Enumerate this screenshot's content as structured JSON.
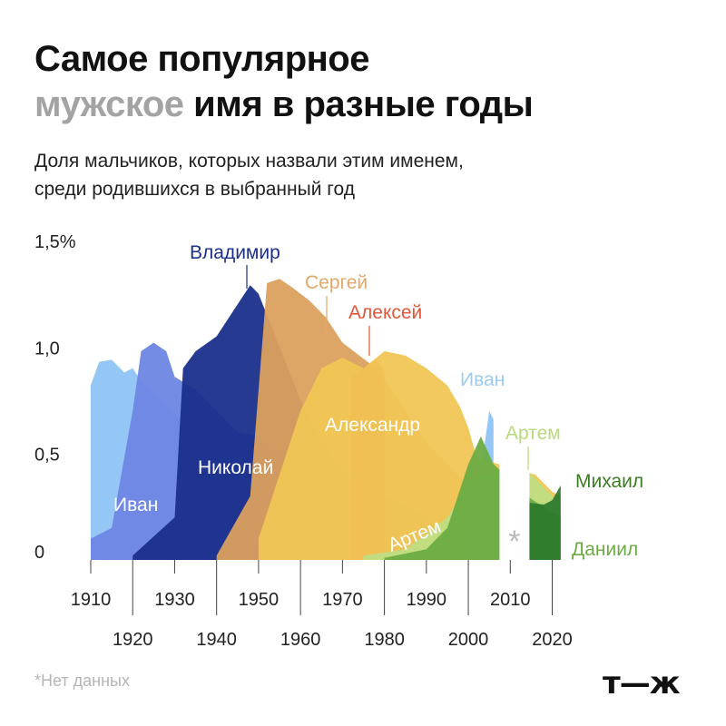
{
  "title": {
    "line1": "Самое популярное",
    "line2_muted": "мужское",
    "line2_rest": " имя в разные годы"
  },
  "subtitle": {
    "line1": "Доля мальчиков, которых назвали этим именем,",
    "line2": "среди родившихся в выбранный год"
  },
  "footnote": "*Нет данных",
  "logo": "т—ж",
  "gap_marker": "*",
  "chart_data": {
    "type": "area",
    "ylabel": "",
    "xlabel": "",
    "ylim": [
      0,
      1.5
    ],
    "xlim": [
      1910,
      2024
    ],
    "y_ticks": [
      {
        "v": 0,
        "label": "0"
      },
      {
        "v": 0.5,
        "label": "0,5"
      },
      {
        "v": 1.0,
        "label": "1,0"
      },
      {
        "v": 1.5,
        "label": "1,5%"
      }
    ],
    "x_ticks_top": [
      1910,
      1930,
      1950,
      1970,
      1990,
      2010
    ],
    "x_ticks_bottom": [
      1920,
      1940,
      1960,
      1980,
      2000,
      2020
    ],
    "missing_data_years": [
      2007,
      2015
    ],
    "grid": false,
    "legend": "inline labels",
    "series": [
      {
        "name": "Иван",
        "color": "#8ec3f5",
        "label_color": "#ffffff",
        "points": [
          [
            1910,
            0.82
          ],
          [
            1912,
            0.93
          ],
          [
            1915,
            0.94
          ],
          [
            1918,
            0.88
          ],
          [
            1920,
            0.9
          ],
          [
            1922,
            0.84
          ],
          [
            1925,
            0.78
          ],
          [
            1930,
            0.68
          ],
          [
            1935,
            0.58
          ],
          [
            1940,
            0.46
          ],
          [
            1945,
            0.36
          ],
          [
            1950,
            0.3
          ],
          [
            1955,
            0.24
          ],
          [
            1960,
            0.18
          ],
          [
            1965,
            0.13
          ],
          [
            1970,
            0.1
          ],
          [
            1975,
            0.08
          ],
          [
            1980,
            0.08
          ],
          [
            1985,
            0.1
          ],
          [
            1990,
            0.14
          ],
          [
            1995,
            0.22
          ],
          [
            2000,
            0.33
          ],
          [
            2003,
            0.42
          ],
          [
            2005,
            0.7
          ],
          [
            2006,
            0.66
          ]
        ]
      },
      {
        "name": "Николай",
        "color": "#6e86e4",
        "label_color": "#ffffff",
        "points": [
          [
            1910,
            0.1
          ],
          [
            1915,
            0.15
          ],
          [
            1920,
            0.7
          ],
          [
            1922,
            0.98
          ],
          [
            1925,
            1.02
          ],
          [
            1928,
            0.98
          ],
          [
            1930,
            0.86
          ],
          [
            1935,
            0.8
          ],
          [
            1940,
            0.7
          ],
          [
            1945,
            0.6
          ],
          [
            1950,
            0.58
          ],
          [
            1955,
            0.5
          ],
          [
            1960,
            0.43
          ],
          [
            1965,
            0.37
          ],
          [
            1970,
            0.3
          ],
          [
            1975,
            0.25
          ],
          [
            1980,
            0.2
          ],
          [
            1985,
            0.15
          ],
          [
            1990,
            0.1
          ],
          [
            1995,
            0.06
          ],
          [
            2000,
            0.04
          ],
          [
            2005,
            0.03
          ]
        ]
      },
      {
        "name": "Владимир",
        "color": "#1a2f8c",
        "label_color": "#1a2f8c",
        "points": [
          [
            1920,
            0.02
          ],
          [
            1930,
            0.2
          ],
          [
            1932,
            0.9
          ],
          [
            1935,
            0.98
          ],
          [
            1940,
            1.05
          ],
          [
            1945,
            1.2
          ],
          [
            1948,
            1.29
          ],
          [
            1950,
            1.25
          ],
          [
            1955,
            1.0
          ],
          [
            1960,
            0.75
          ],
          [
            1965,
            0.55
          ],
          [
            1970,
            0.42
          ],
          [
            1975,
            0.35
          ],
          [
            1980,
            0.3
          ],
          [
            1985,
            0.25
          ],
          [
            1990,
            0.2
          ],
          [
            2000,
            0.08
          ]
        ]
      },
      {
        "name": "Сергей",
        "color": "#dba05e",
        "label_color": "#e2a869",
        "points": [
          [
            1940,
            0.02
          ],
          [
            1948,
            0.3
          ],
          [
            1952,
            1.3
          ],
          [
            1955,
            1.32
          ],
          [
            1958,
            1.28
          ],
          [
            1962,
            1.22
          ],
          [
            1966,
            1.14
          ],
          [
            1970,
            1.02
          ],
          [
            1974,
            0.96
          ],
          [
            1978,
            0.9
          ],
          [
            1985,
            0.7
          ],
          [
            1990,
            0.55
          ],
          [
            1995,
            0.45
          ],
          [
            2000,
            0.35
          ]
        ]
      },
      {
        "name": "Алексей",
        "color": "#e2553a",
        "label_color": "#e2553a",
        "points": [
          [
            1972,
            0.86
          ],
          [
            1975,
            0.9
          ],
          [
            1978,
            0.94
          ],
          [
            1980,
            0.88
          ]
        ]
      },
      {
        "name": "Александр",
        "color": "#f0c655",
        "label_color": "#ffffff",
        "points": [
          [
            1950,
            0.1
          ],
          [
            1960,
            0.7
          ],
          [
            1965,
            0.9
          ],
          [
            1970,
            0.95
          ],
          [
            1975,
            0.9
          ],
          [
            1980,
            0.98
          ],
          [
            1985,
            0.96
          ],
          [
            1990,
            0.9
          ],
          [
            1995,
            0.82
          ],
          [
            1998,
            0.72
          ],
          [
            2000,
            0.62
          ],
          [
            2002,
            0.48
          ],
          [
            2016,
            0.4
          ],
          [
            2020,
            0.32
          ],
          [
            2022,
            0.3
          ]
        ]
      },
      {
        "name": "Артем",
        "color": "#bede82",
        "label_color": "#ffffff",
        "second_label_color": "#b8da7a",
        "points": [
          [
            1975,
            0.02
          ],
          [
            1985,
            0.05
          ],
          [
            1990,
            0.12
          ],
          [
            1995,
            0.2
          ],
          [
            2000,
            0.35
          ],
          [
            2005,
            0.4
          ],
          [
            2014,
            0.42
          ],
          [
            2020,
            0.3
          ],
          [
            2022,
            0.26
          ]
        ]
      },
      {
        "name": "Даниил",
        "color": "#6cac43",
        "label_color": "#6cac43",
        "points": [
          [
            1980,
            0.01
          ],
          [
            1990,
            0.05
          ],
          [
            1995,
            0.15
          ],
          [
            2000,
            0.45
          ],
          [
            2003,
            0.58
          ],
          [
            2006,
            0.45
          ],
          [
            2014,
            0.3
          ],
          [
            2020,
            0.22
          ],
          [
            2022,
            0.2
          ]
        ]
      },
      {
        "name": "Михаил",
        "color": "#2d7a2d",
        "label_color": "#3b7d22",
        "points": [
          [
            2014,
            0.27
          ],
          [
            2018,
            0.26
          ],
          [
            2020,
            0.28
          ],
          [
            2022,
            0.35
          ]
        ]
      }
    ]
  }
}
